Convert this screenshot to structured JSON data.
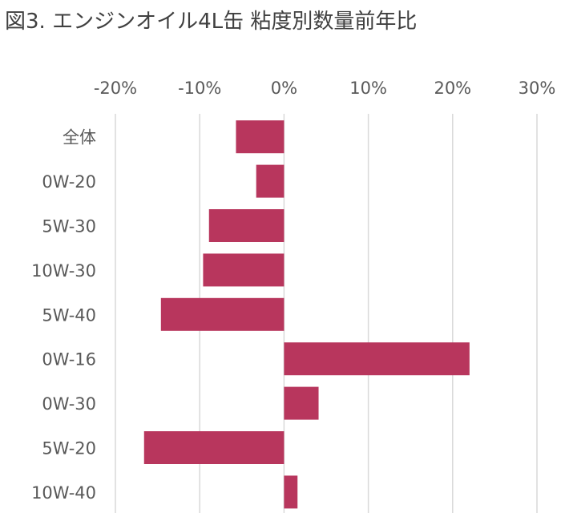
{
  "chart_data": {
    "type": "bar",
    "orientation": "horizontal",
    "title": "図3. エンジンオイル4L缶 粘度別数量前年比",
    "xlabel": "",
    "ylabel": "",
    "categories": [
      "全体",
      "0W-20",
      "5W-30",
      "10W-30",
      "5W-40",
      "0W-16",
      "0W-30",
      "5W-20",
      "10W-40"
    ],
    "values": [
      -5.7,
      -3.3,
      -8.9,
      -9.6,
      -14.6,
      22.0,
      4.1,
      -16.6,
      1.6
    ],
    "xlim": [
      -20,
      30
    ],
    "x_ticks": [
      "-20%",
      "-10%",
      "0%",
      "10%",
      "20%",
      "30%"
    ],
    "grid": true,
    "legend": "none",
    "bar_color": "#b8365d",
    "grid_color": "#d9d9d9"
  }
}
